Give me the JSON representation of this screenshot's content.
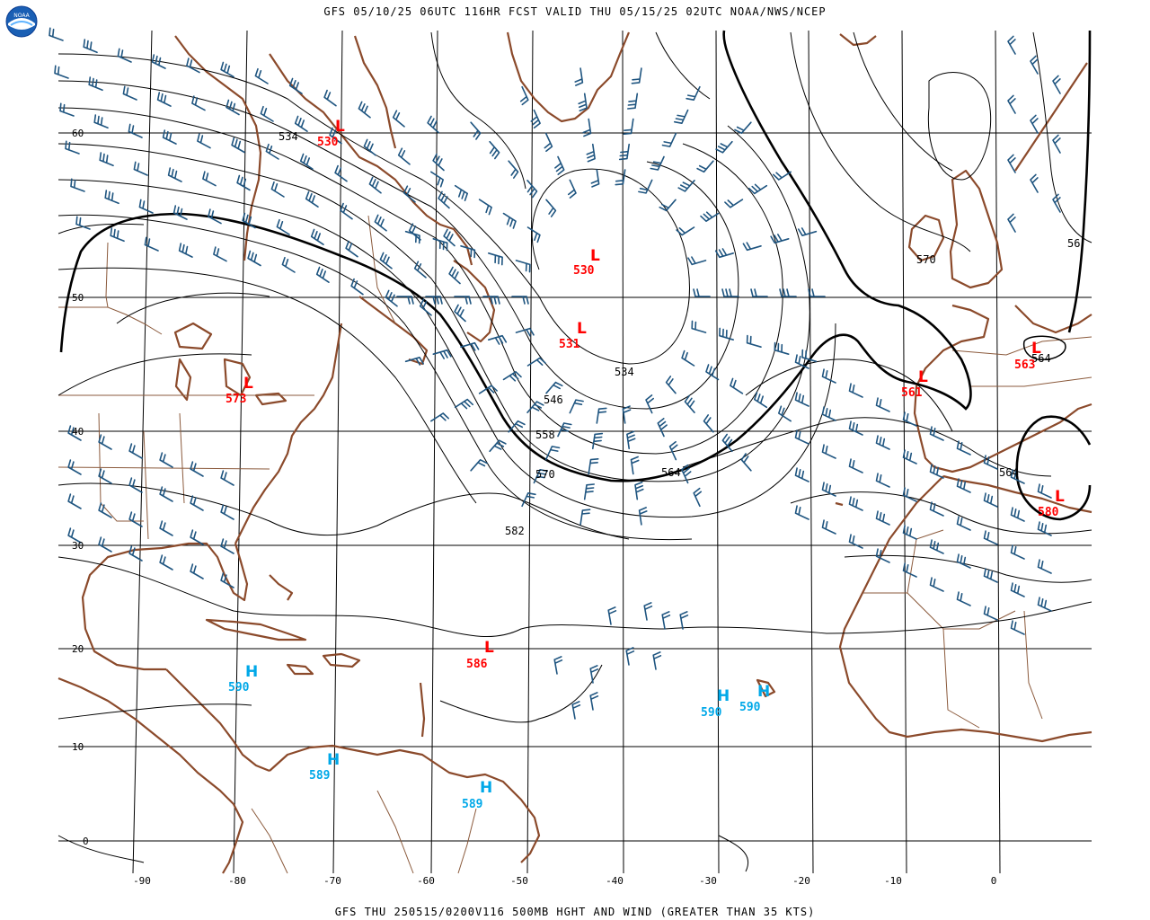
{
  "header": {
    "title": "GFS 05/10/25 06UTC 116HR FCST VALID THU 05/15/25 02UTC NOAA/NWS/NCEP"
  },
  "footer": {
    "caption": "GFS THU 250515/0200V116 500MB HGHT AND WIND (GREATER THAN 35 KTS)"
  },
  "logo": {
    "text": "NOAA",
    "icon": "noaa-logo-icon"
  },
  "colors": {
    "coast": "#8b4a2b",
    "borders": "#8b5a3c",
    "barbs": "#1f5580",
    "low": "#ff0000",
    "high": "#00a8e8",
    "contour": "#000000",
    "grid": "#000000"
  },
  "axes": {
    "lon_labels": [
      "-90",
      "-80",
      "-70",
      "-60",
      "-50",
      "-40",
      "-30",
      "-20",
      "-10",
      "0"
    ],
    "lat_labels": [
      "60",
      "50",
      "40",
      "30",
      "20",
      "10",
      "0"
    ]
  },
  "contour_labels": [
    "534",
    "534",
    "546",
    "558",
    "570",
    "564",
    "582",
    "570",
    "564",
    "564",
    "56"
  ],
  "centers": [
    {
      "type": "L",
      "value": "530"
    },
    {
      "type": "L",
      "value": "530"
    },
    {
      "type": "L",
      "value": "531"
    },
    {
      "type": "L",
      "value": "573"
    },
    {
      "type": "L",
      "value": "561"
    },
    {
      "type": "L",
      "value": "563"
    },
    {
      "type": "L",
      "value": "580"
    },
    {
      "type": "L",
      "value": "586"
    },
    {
      "type": "H",
      "value": "590"
    },
    {
      "type": "H",
      "value": "590"
    },
    {
      "type": "H",
      "value": "590"
    },
    {
      "type": "H",
      "value": "589"
    },
    {
      "type": "H",
      "value": "589"
    }
  ]
}
